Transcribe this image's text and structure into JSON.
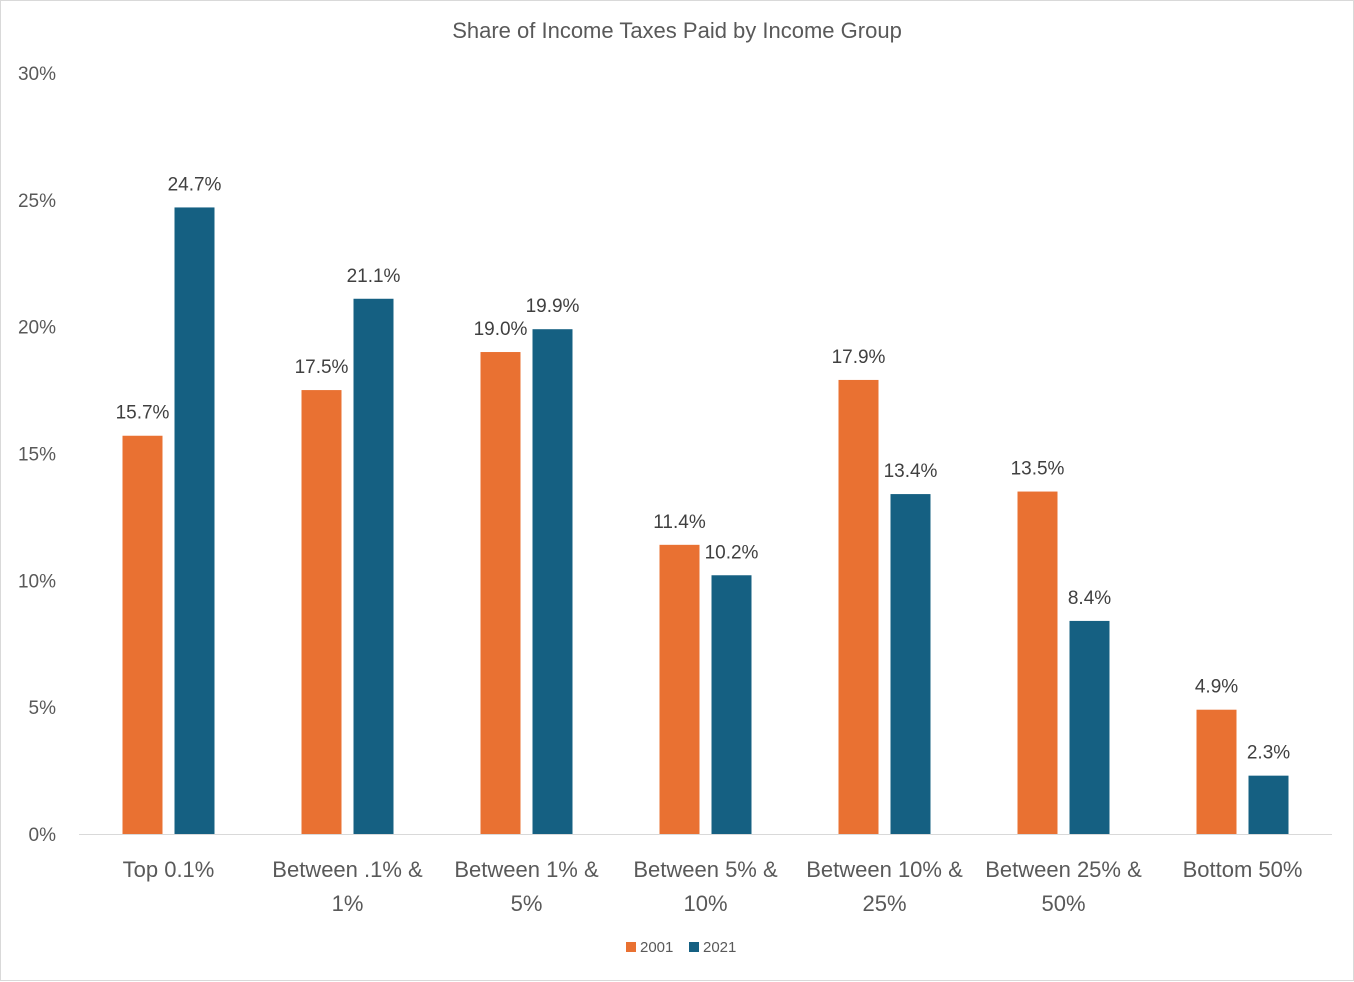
{
  "chart_data": {
    "type": "bar",
    "title": "Share of Income Taxes Paid by Income Group",
    "xlabel": "",
    "ylabel": "",
    "ylim": [
      0,
      0.3
    ],
    "y_ticks": [
      "0%",
      "5%",
      "10%",
      "15%",
      "20%",
      "25%",
      "30%"
    ],
    "y_tick_values": [
      0,
      0.05,
      0.1,
      0.15,
      0.2,
      0.25,
      0.3
    ],
    "grid": false,
    "legend_position": "bottom",
    "categories": [
      [
        "Top 0.1%"
      ],
      [
        "Between .1% &",
        "1%"
      ],
      [
        "Between 1% &",
        "5%"
      ],
      [
        "Between 5% &",
        "10%"
      ],
      [
        "Between 10% &",
        "25%"
      ],
      [
        "Between 25% &",
        "50%"
      ],
      [
        "Bottom 50%"
      ]
    ],
    "series": [
      {
        "name": "2001",
        "color": "#E97132",
        "values": [
          0.157,
          0.175,
          0.19,
          0.114,
          0.179,
          0.135,
          0.049
        ],
        "labels": [
          "15.7%",
          "17.5%",
          "19.0%",
          "11.4%",
          "17.9%",
          "13.5%",
          "4.9%"
        ]
      },
      {
        "name": "2021",
        "color": "#156082",
        "values": [
          0.247,
          0.211,
          0.199,
          0.102,
          0.134,
          0.084,
          0.023
        ],
        "labels": [
          "24.7%",
          "21.1%",
          "19.9%",
          "10.2%",
          "13.4%",
          "8.4%",
          "2.3%"
        ]
      }
    ]
  }
}
